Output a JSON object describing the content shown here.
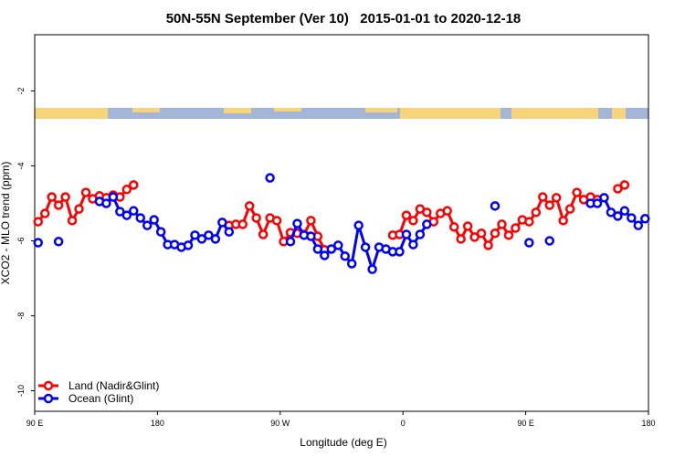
{
  "chart_data": {
    "type": "line",
    "title": "50N-55N September (Ver 10)   2015-01-01 to 2020-12-18",
    "xlabel": "Longitude (deg E)",
    "ylabel": "XCO2 - MLO trend (ppm)",
    "xlim": [
      90,
      540
    ],
    "ylim": [
      -10.55,
      -0.5
    ],
    "xticks": [
      {
        "value": 90,
        "label": "90 E"
      },
      180,
      {
        "value": 270,
        "label": "90 W"
      },
      {
        "value": 360,
        "label": "0"
      },
      {
        "value": 450,
        "label": "90 E"
      },
      {
        "value": 540,
        "label": "180"
      }
    ],
    "yticks": [
      -2,
      -4,
      -6,
      -8,
      -10
    ],
    "legend": "bottom-left",
    "x": [
      92.5,
      97.5,
      102.5,
      107.5,
      112.5,
      117.5,
      122.5,
      127.5,
      132.5,
      137.5,
      142.5,
      147.5,
      152.5,
      157.5,
      162.5,
      167.5,
      172.5,
      177.5,
      182.5,
      187.5,
      192.5,
      197.5,
      202.5,
      207.5,
      212.5,
      217.5,
      222.5,
      227.5,
      232.5,
      237.5,
      242.5,
      247.5,
      252.5,
      257.5,
      262.5,
      267.5,
      272.5,
      277.5,
      282.5,
      287.5,
      292.5,
      297.5,
      302.5,
      307.5,
      312.5,
      317.5,
      322.5,
      327.5,
      332.5,
      337.5,
      342.5,
      347.5,
      352.5,
      357.5,
      362.5,
      367.5,
      372.5,
      377.5,
      382.5,
      387.5,
      392.5,
      397.5,
      402.5,
      407.5,
      412.5,
      417.5,
      422.5,
      427.5,
      432.5,
      437.5,
      442.5,
      447.5,
      452.5,
      457.5,
      462.5,
      467.5,
      472.5,
      477.5,
      482.5,
      487.5,
      492.5,
      497.5,
      502.5,
      507.5,
      512.5,
      517.5,
      522.5,
      527.5,
      532.5,
      537.5
    ],
    "series": [
      {
        "name": "Land (Nadir&Glint)",
        "color": "#ff0000",
        "values": [
          -5.49,
          -5.27,
          -4.83,
          -5.05,
          -4.83,
          -5.46,
          -5.15,
          -4.71,
          -4.88,
          -4.8,
          -4.85,
          -4.78,
          -4.83,
          -4.63,
          -4.51,
          null,
          null,
          null,
          null,
          null,
          null,
          null,
          null,
          null,
          null,
          null,
          null,
          null,
          -5.59,
          -5.56,
          -5.56,
          -5.07,
          -5.39,
          -5.83,
          -5.39,
          -5.46,
          -6.02,
          -5.78,
          -5.8,
          -5.83,
          -5.46,
          -5.88,
          -6.24,
          null,
          null,
          null,
          null,
          null,
          null,
          null,
          null,
          null,
          -5.85,
          -5.83,
          -5.32,
          -5.46,
          -5.15,
          -5.24,
          -5.49,
          -5.27,
          -5.2,
          -5.63,
          -5.95,
          -5.61,
          -5.9,
          -5.8,
          -6.12,
          -5.8,
          -5.56,
          -5.85,
          -5.66,
          -5.44,
          -5.49,
          -5.24,
          -4.83,
          -5.05,
          -4.85,
          -5.46,
          -5.15,
          -4.71,
          -4.9,
          -4.83,
          -4.9,
          null,
          null,
          -4.61,
          -4.51,
          null,
          null,
          null
        ]
      },
      {
        "name": "Ocean (Glint)",
        "color": "#0000ff",
        "values": [
          -6.05,
          null,
          null,
          -6.02,
          null,
          null,
          null,
          null,
          null,
          -4.95,
          -5.0,
          -4.83,
          -5.22,
          -5.32,
          -5.2,
          -5.39,
          -5.59,
          -5.44,
          -5.76,
          -6.1,
          -6.1,
          -6.17,
          -6.12,
          -5.85,
          -5.95,
          -5.85,
          -5.95,
          -5.51,
          -5.76,
          null,
          null,
          null,
          null,
          null,
          -4.32,
          null,
          null,
          -6.02,
          -5.54,
          -5.85,
          -5.88,
          -6.22,
          -6.39,
          -6.22,
          -6.12,
          -6.41,
          -6.61,
          -5.59,
          -6.17,
          -6.76,
          -6.17,
          -6.22,
          -6.29,
          -6.29,
          -5.83,
          -6.1,
          -5.83,
          -5.56,
          null,
          null,
          null,
          null,
          null,
          null,
          null,
          null,
          null,
          -5.07,
          null,
          null,
          null,
          null,
          -6.05,
          null,
          null,
          -6.0,
          null,
          null,
          null,
          null,
          null,
          -5.0,
          -5.0,
          -4.85,
          -5.24,
          -5.34,
          -5.2,
          -5.39,
          -5.59,
          -5.41
        ]
      }
    ]
  }
}
